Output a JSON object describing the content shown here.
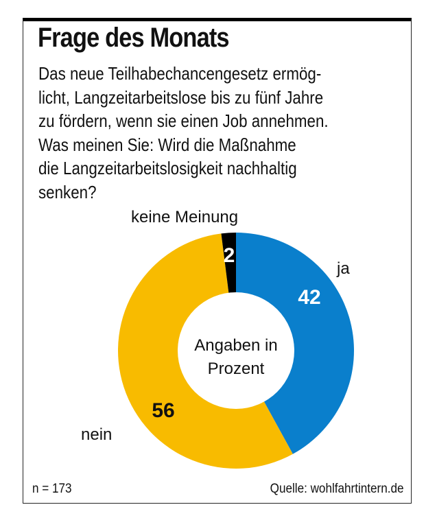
{
  "header": {
    "title": "Frage des Monats",
    "question_lines": [
      "Das neue Teilhabechancengesetz ermög-",
      "licht, Langzeitarbeitslose bis zu fünf Jahre",
      "zu fördern, wenn sie einen Job annehmen.",
      "Was meinen Sie: Wird die Maßnahme",
      "die Langzeitarbeitslosigkeit nachhaltig",
      "senken?"
    ]
  },
  "chart_data": {
    "type": "pie",
    "variant": "donut",
    "title": "Frage des Monats",
    "center_label": [
      "Angaben in",
      "Prozent"
    ],
    "unit": "%",
    "start": "top",
    "direction": "clockwise",
    "slices": [
      {
        "label": "ja",
        "value": 42,
        "color": "#0a7fcc",
        "value_color": "#ffffff"
      },
      {
        "label": "nein",
        "value": 56,
        "color": "#f8bb00",
        "value_color": "#111111"
      },
      {
        "label": "keine Meinung",
        "value": 2,
        "color": "#000000",
        "value_color": "#ffffff"
      }
    ]
  },
  "footer": {
    "sample": "n = 173",
    "source": "Quelle: wohlfahrtintern.de"
  }
}
